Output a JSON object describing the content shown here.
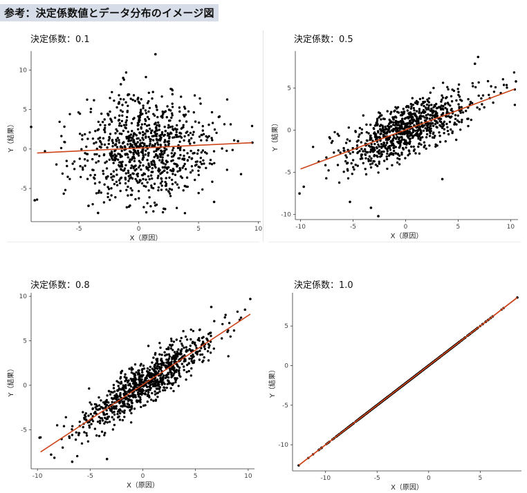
{
  "page": {
    "heading": "参考：決定係数値とデータ分布のイメージ図"
  },
  "chart_data": [
    {
      "type": "scatter",
      "title": "決定係数：0.1",
      "xlabel": "X（原因）",
      "ylabel": "Y（結果）",
      "xlim": [
        -9,
        10.2
      ],
      "ylim": [
        -9.2,
        12.4
      ],
      "xticks": [
        -5,
        0,
        5,
        10
      ],
      "yticks": [
        -5,
        0,
        5,
        10
      ],
      "r2": 0.1,
      "n_points": 900,
      "fit_line": [
        [
          -8.5,
          -0.5
        ],
        [
          9.5,
          0.8
        ]
      ],
      "outliers": [
        [
          1.4,
          12
        ],
        [
          -1.3,
          9
        ],
        [
          -1.5,
          8.2
        ],
        [
          -9,
          2.8
        ],
        [
          -8.7,
          -6.5
        ],
        [
          9.5,
          0.8
        ],
        [
          8.3,
          1.0
        ],
        [
          6.3,
          -6.7
        ],
        [
          -4.2,
          -7.2
        ],
        [
          2.2,
          -7.6
        ],
        [
          -3.4,
          -8.1
        ]
      ],
      "line_color": "#cc4419",
      "point_color": "#000000",
      "grid": false
    },
    {
      "type": "scatter",
      "title": "決定係数：0.5",
      "xlabel": "X（原因）",
      "ylabel": "Y（結果）",
      "xlim": [
        -10.5,
        10.7
      ],
      "ylim": [
        -10.6,
        9.4
      ],
      "xticks": [
        -10,
        -5,
        0,
        5,
        10
      ],
      "yticks": [
        -10,
        -5,
        0,
        5
      ],
      "r2": 0.5,
      "n_points": 900,
      "fit_line": [
        [
          -10,
          -4.6
        ],
        [
          10.4,
          4.9
        ]
      ],
      "outliers": [
        [
          -10.1,
          -7.5
        ],
        [
          -9.7,
          -6.7
        ],
        [
          10.5,
          5.8
        ],
        [
          6.9,
          8.7
        ],
        [
          6.6,
          7.9
        ],
        [
          -5.3,
          -8.5
        ],
        [
          -3.3,
          -9.2
        ],
        [
          -2.6,
          -10.2
        ],
        [
          3.5,
          -5.8
        ]
      ],
      "line_color": "#cc4419",
      "point_color": "#000000",
      "grid": false
    },
    {
      "type": "scatter",
      "title": "決定係数：0.8",
      "xlabel": "X（原因）",
      "ylabel": "Y（結果）",
      "xlim": [
        -10.6,
        10.6
      ],
      "ylim": [
        -9.4,
        10.4
      ],
      "xticks": [
        -10,
        -5,
        0,
        5,
        10
      ],
      "yticks": [
        -5,
        0,
        5,
        10
      ],
      "r2": 0.8,
      "n_points": 900,
      "fit_line": [
        [
          -9.7,
          -7.5
        ],
        [
          10.2,
          8.0
        ]
      ],
      "outliers": [
        [
          10.2,
          9.7
        ],
        [
          9.7,
          8.5
        ],
        [
          -9.8,
          -5.9
        ],
        [
          -8.7,
          -7.8
        ],
        [
          -6.7,
          -8.6
        ],
        [
          -3.4,
          -8.3
        ],
        [
          6.5,
          8.8
        ]
      ],
      "line_color": "#cc4419",
      "point_color": "#000000",
      "grid": false
    },
    {
      "type": "scatter",
      "title": "決定係数：1.0",
      "xlabel": "X（原因）",
      "ylabel": "Y（結果）",
      "xlim": [
        -13.2,
        9.0
      ],
      "ylim": [
        -13.3,
        9.2
      ],
      "xticks": [
        -10,
        -5,
        0,
        5
      ],
      "yticks": [
        -10,
        -5,
        0,
        5
      ],
      "r2": 1.0,
      "n_points": 900,
      "fit_line": [
        [
          -12.6,
          -12.6
        ],
        [
          8.6,
          8.6
        ]
      ],
      "outliers": [
        [
          -12.6,
          -12.6
        ],
        [
          8.6,
          8.6
        ]
      ],
      "line_color": "#cc4419",
      "point_color": "#000000",
      "grid": false
    }
  ]
}
